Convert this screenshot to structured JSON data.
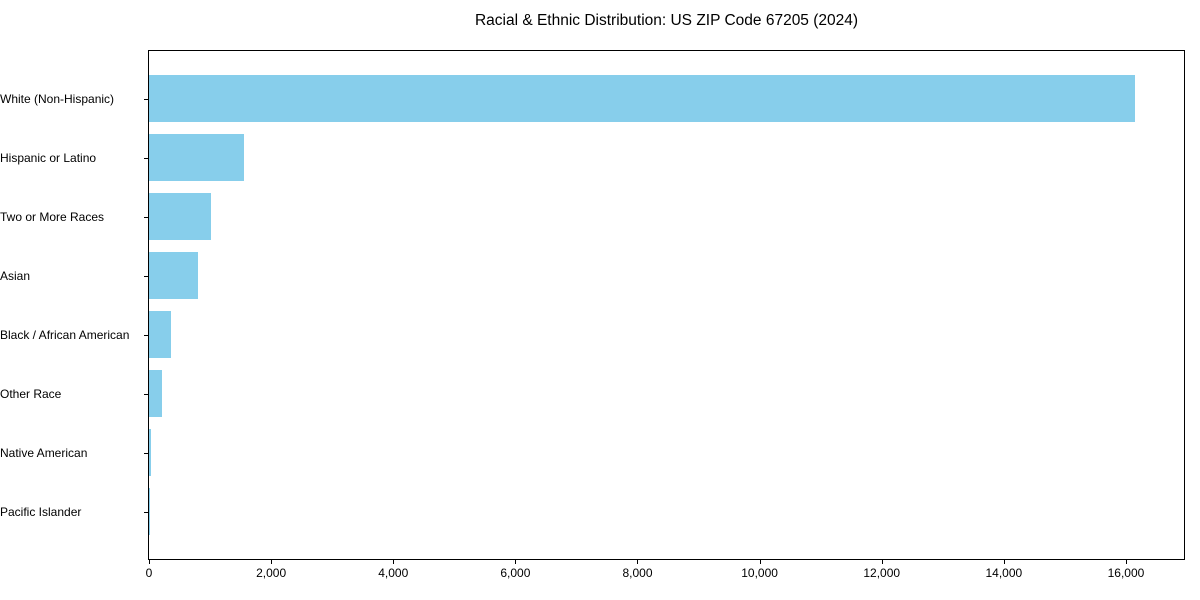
{
  "chart_data": {
    "type": "bar",
    "orientation": "horizontal",
    "title": "Racial & Ethnic Distribution: US ZIP Code 67205 (2024)",
    "categories": [
      "White (Non-Hispanic)",
      "Hispanic or Latino",
      "Two or More Races",
      "Asian",
      "Black / African American",
      "Other Race",
      "Native American",
      "Pacific Islander"
    ],
    "values": [
      16145,
      1550,
      1010,
      800,
      360,
      210,
      40,
      10
    ],
    "bar_color": "#87CEEB",
    "xlabel": "",
    "ylabel": "",
    "xlim": [
      0,
      16950
    ],
    "xticks": {
      "values": [
        0,
        2000,
        4000,
        6000,
        8000,
        10000,
        12000,
        14000,
        16000
      ],
      "labels": [
        "0",
        "2,000",
        "4,000",
        "6,000",
        "8,000",
        "10,000",
        "12,000",
        "14,000",
        "16,000"
      ]
    },
    "grid": false,
    "legend": null,
    "background_color": "#ffffff",
    "axis_color": "#000000"
  }
}
